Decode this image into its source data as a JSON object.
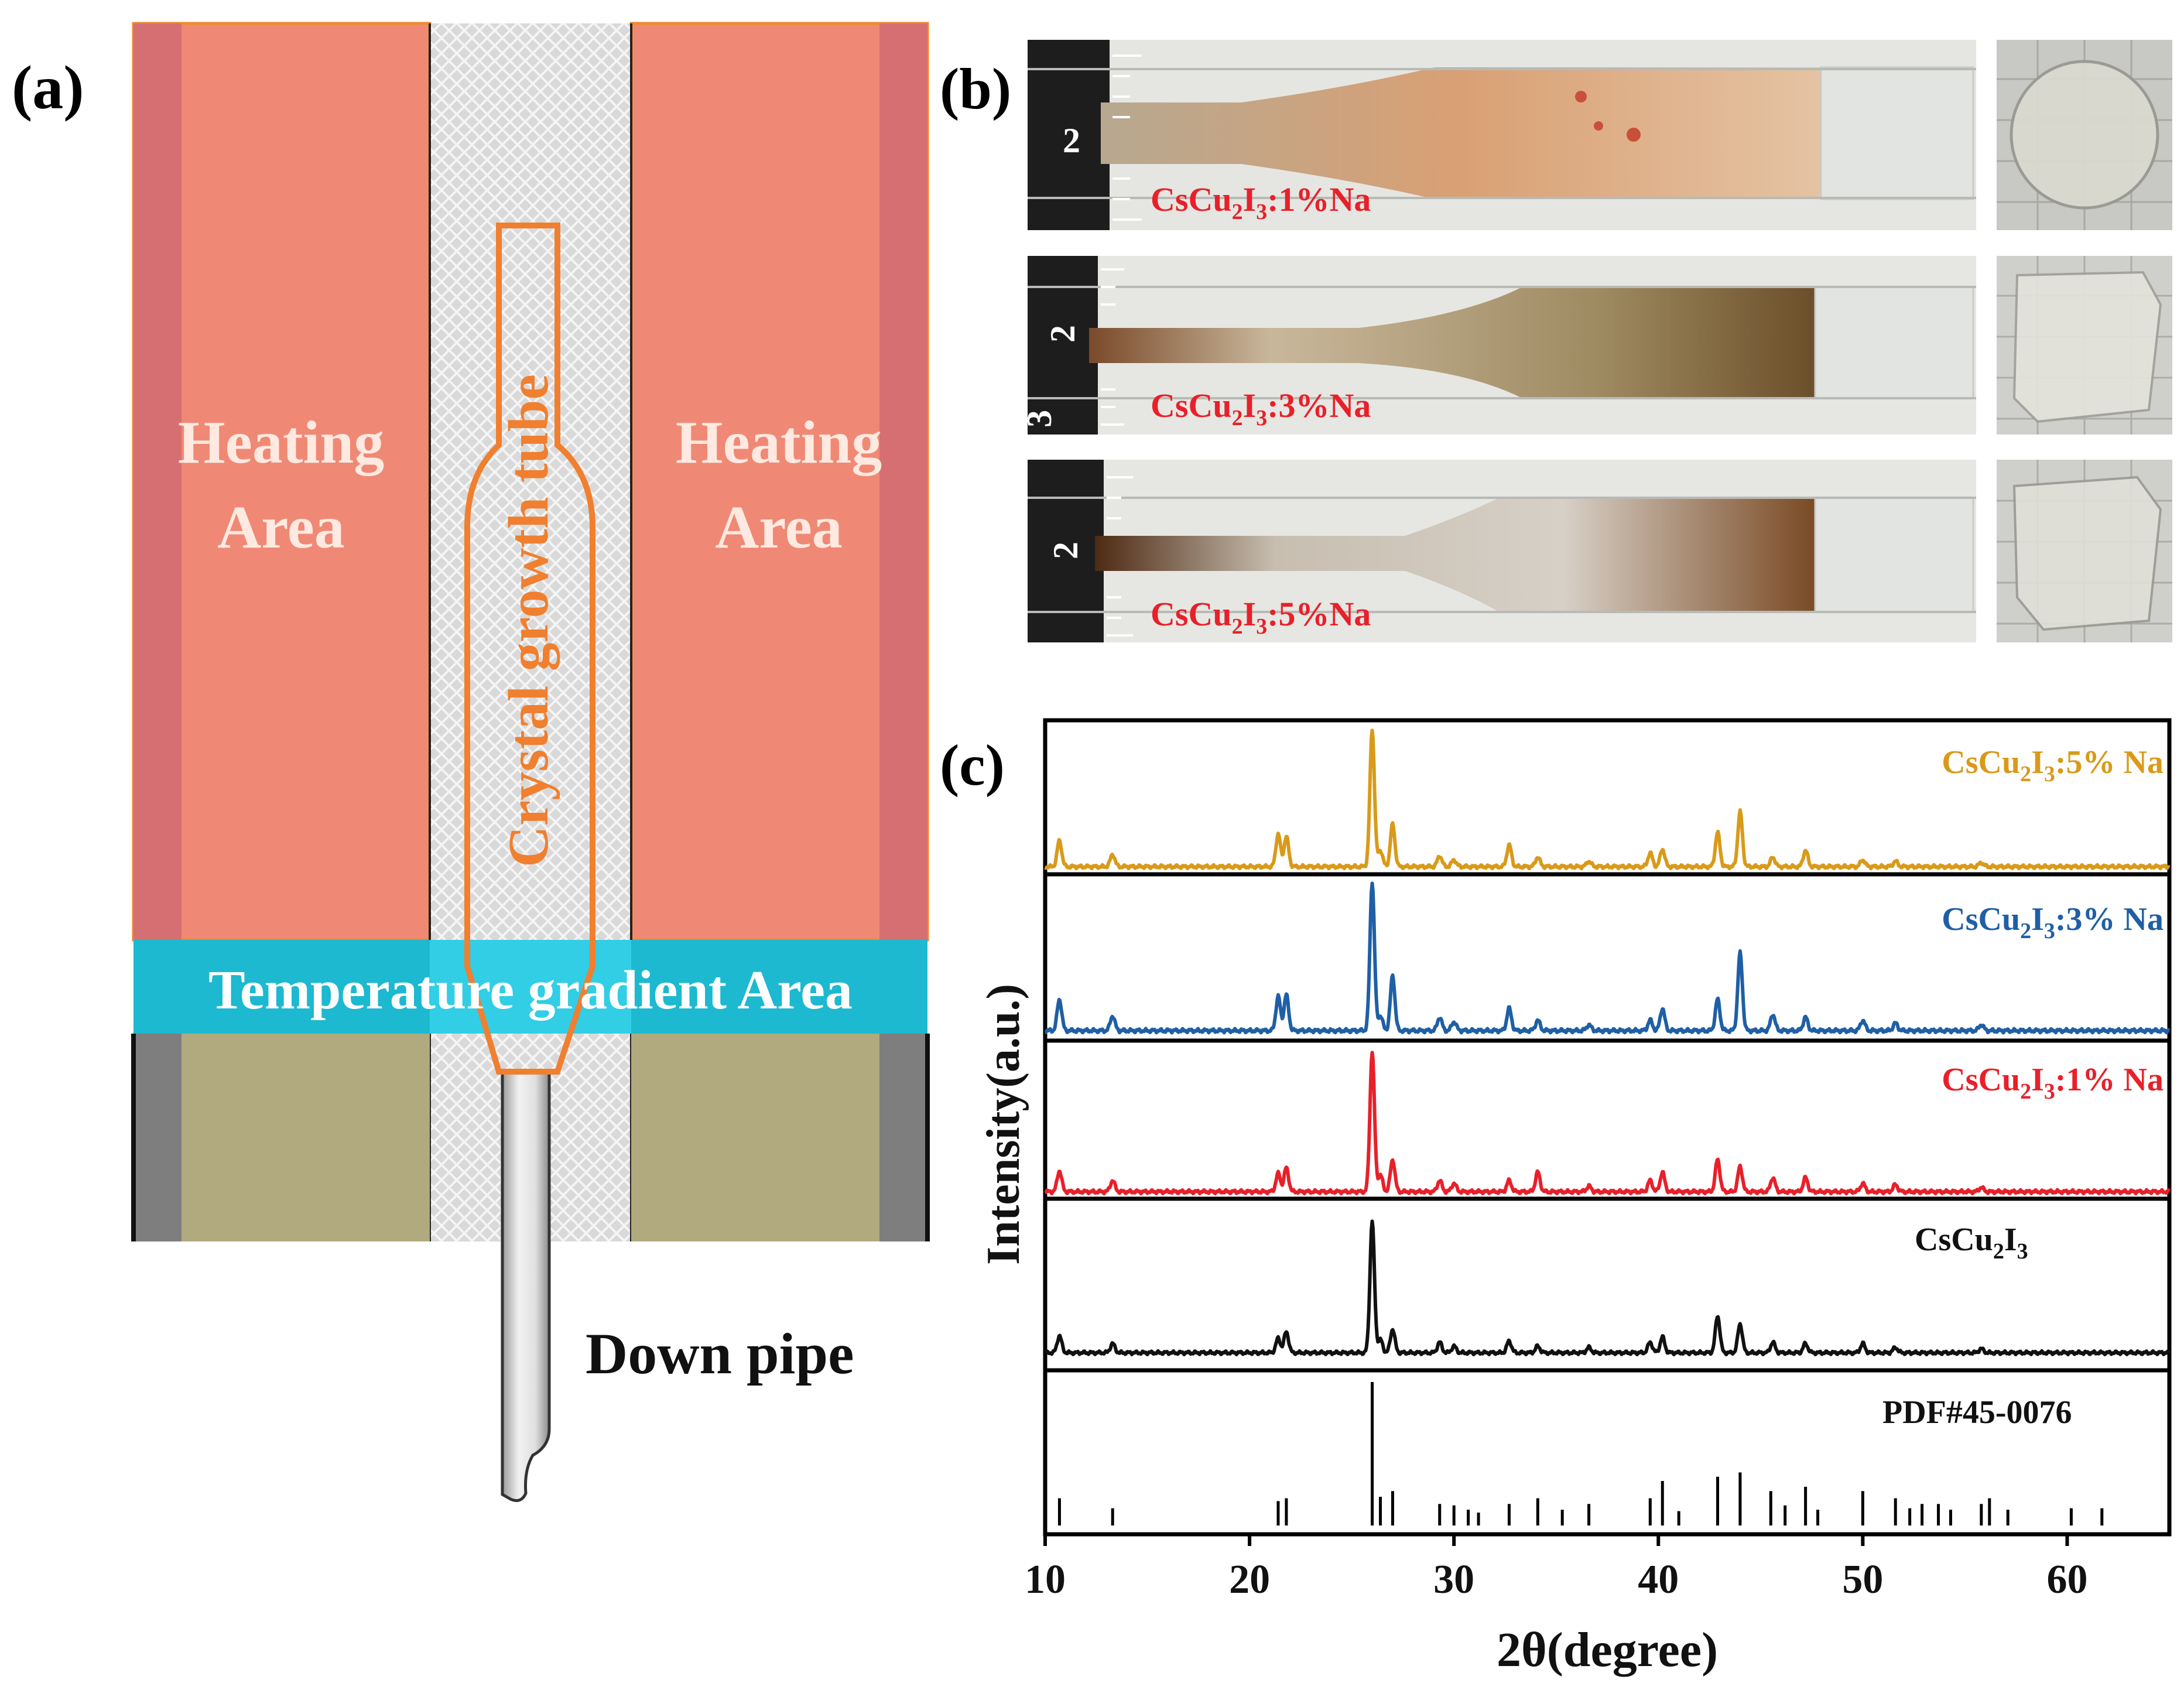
{
  "panel_a": {
    "label": "(a)",
    "heating_left_line1": "Heating",
    "heating_left_line2": "Area",
    "heating_right_line1": "Heating",
    "heating_right_line2": "Area",
    "tube_label": "Crystal growth tube",
    "gradient_label": "Temperature gradient Area",
    "pipe_label": "Down pipe",
    "colors": {
      "heating": "#ef8975",
      "heating_edge": "#d46f71",
      "gradient": "#19b8cf",
      "base": "#b2ab7f",
      "base_edge": "#7f7f7f",
      "tube": "#f07f30"
    }
  },
  "panel_b": {
    "label": "(b)",
    "samples": [
      {
        "base": "CsCu",
        "sub1": "2",
        "mid": "I",
        "sub2": "3",
        "suffix": ":1%Na",
        "ruler_digits": [
          "2"
        ]
      },
      {
        "base": "CsCu",
        "sub1": "2",
        "mid": "I",
        "sub2": "3",
        "suffix": ":3%Na",
        "ruler_digits": [
          "2",
          "3"
        ]
      },
      {
        "base": "CsCu",
        "sub1": "2",
        "mid": "I",
        "sub2": "3",
        "suffix": ":5%Na",
        "ruler_digits": [
          "2"
        ]
      }
    ],
    "label_color": "#e8202a"
  },
  "panel_c": {
    "label": "(c)",
    "xlabel": "2θ(degree)",
    "ylabel": "Intensity(a.u.)",
    "ticks": [
      "10",
      "20",
      "30",
      "40",
      "50",
      "60"
    ],
    "traces": [
      {
        "base": "CsCu",
        "sub1": "2",
        "mid": "I",
        "sub2": "3",
        "suffix": ":5% Na",
        "color": "#d99a1a"
      },
      {
        "base": "CsCu",
        "sub1": "2",
        "mid": "I",
        "sub2": "3",
        "suffix": ":3% Na",
        "color": "#1f5fa5"
      },
      {
        "base": "CsCu",
        "sub1": "2",
        "mid": "I",
        "sub2": "3",
        "suffix": ":1% Na",
        "color": "#e8202a"
      },
      {
        "base": "CsCu",
        "sub1": "2",
        "mid": "I",
        "sub2": "3",
        "suffix": "",
        "color": "#111111"
      }
    ],
    "reference_label": "PDF#45-0076"
  },
  "chart_data": {
    "type": "line",
    "xlabel": "2θ(degree)",
    "ylabel": "Intensity(a.u.)",
    "xlim": [
      10,
      65
    ],
    "x_ticks": [
      10,
      20,
      30,
      40,
      50,
      60
    ],
    "series": [
      {
        "name": "CsCu2I3:5% Na",
        "peaks": [
          [
            10.7,
            0.19
          ],
          [
            13.3,
            0.09
          ],
          [
            21.4,
            0.24
          ],
          [
            21.8,
            0.22
          ],
          [
            26.0,
            1.0
          ],
          [
            26.4,
            0.12
          ],
          [
            27.0,
            0.31
          ],
          [
            29.3,
            0.08
          ],
          [
            30.0,
            0.05
          ],
          [
            32.7,
            0.16
          ],
          [
            34.1,
            0.07
          ],
          [
            36.6,
            0.04
          ],
          [
            39.6,
            0.1
          ],
          [
            40.2,
            0.13
          ],
          [
            42.9,
            0.25
          ],
          [
            44.0,
            0.4
          ],
          [
            45.6,
            0.07
          ],
          [
            47.2,
            0.12
          ],
          [
            50.0,
            0.05
          ],
          [
            51.6,
            0.04
          ],
          [
            55.8,
            0.03
          ]
        ]
      },
      {
        "name": "CsCu2I3:3% Na",
        "peaks": [
          [
            10.7,
            0.21
          ],
          [
            13.3,
            0.1
          ],
          [
            21.4,
            0.23
          ],
          [
            21.8,
            0.24
          ],
          [
            26.0,
            1.0
          ],
          [
            26.4,
            0.1
          ],
          [
            27.0,
            0.37
          ],
          [
            29.3,
            0.09
          ],
          [
            30.0,
            0.06
          ],
          [
            32.7,
            0.15
          ],
          [
            34.1,
            0.07
          ],
          [
            36.6,
            0.04
          ],
          [
            39.6,
            0.07
          ],
          [
            40.2,
            0.15
          ],
          [
            42.9,
            0.21
          ],
          [
            44.0,
            0.52
          ],
          [
            45.6,
            0.11
          ],
          [
            47.2,
            0.09
          ],
          [
            50.0,
            0.07
          ],
          [
            51.6,
            0.05
          ],
          [
            55.8,
            0.04
          ]
        ]
      },
      {
        "name": "CsCu2I3:1% Na",
        "peaks": [
          [
            10.7,
            0.15
          ],
          [
            13.3,
            0.08
          ],
          [
            21.4,
            0.13
          ],
          [
            21.8,
            0.17
          ],
          [
            26.0,
            1.0
          ],
          [
            26.4,
            0.12
          ],
          [
            27.0,
            0.23
          ],
          [
            29.3,
            0.08
          ],
          [
            30.0,
            0.06
          ],
          [
            32.7,
            0.08
          ],
          [
            34.1,
            0.14
          ],
          [
            36.6,
            0.04
          ],
          [
            39.6,
            0.08
          ],
          [
            40.2,
            0.14
          ],
          [
            42.9,
            0.23
          ],
          [
            44.0,
            0.18
          ],
          [
            45.6,
            0.1
          ],
          [
            47.2,
            0.1
          ],
          [
            50.0,
            0.06
          ],
          [
            51.6,
            0.05
          ],
          [
            55.8,
            0.03
          ]
        ]
      },
      {
        "name": "CsCu2I3",
        "peaks": [
          [
            10.7,
            0.13
          ],
          [
            13.3,
            0.07
          ],
          [
            21.4,
            0.11
          ],
          [
            21.8,
            0.16
          ],
          [
            26.0,
            1.0
          ],
          [
            26.4,
            0.1
          ],
          [
            27.0,
            0.18
          ],
          [
            29.3,
            0.08
          ],
          [
            30.0,
            0.05
          ],
          [
            32.7,
            0.09
          ],
          [
            34.1,
            0.05
          ],
          [
            36.6,
            0.04
          ],
          [
            39.6,
            0.08
          ],
          [
            40.2,
            0.12
          ],
          [
            42.9,
            0.28
          ],
          [
            44.0,
            0.22
          ],
          [
            45.6,
            0.08
          ],
          [
            47.2,
            0.07
          ],
          [
            50.0,
            0.07
          ],
          [
            51.6,
            0.04
          ],
          [
            55.8,
            0.03
          ]
        ]
      },
      {
        "name": "PDF#45-0076",
        "sticks": [
          [
            10.7,
            0.19
          ],
          [
            13.3,
            0.12
          ],
          [
            21.4,
            0.17
          ],
          [
            21.8,
            0.19
          ],
          [
            26.0,
            1.0
          ],
          [
            26.4,
            0.2
          ],
          [
            27.0,
            0.24
          ],
          [
            29.3,
            0.15
          ],
          [
            30.0,
            0.14
          ],
          [
            30.7,
            0.11
          ],
          [
            31.2,
            0.09
          ],
          [
            32.7,
            0.15
          ],
          [
            34.1,
            0.19
          ],
          [
            35.3,
            0.11
          ],
          [
            36.6,
            0.15
          ],
          [
            39.6,
            0.19
          ],
          [
            40.2,
            0.31
          ],
          [
            41.0,
            0.1
          ],
          [
            42.9,
            0.34
          ],
          [
            44.0,
            0.37
          ],
          [
            45.5,
            0.24
          ],
          [
            46.2,
            0.14
          ],
          [
            47.2,
            0.27
          ],
          [
            47.8,
            0.11
          ],
          [
            50.0,
            0.24
          ],
          [
            51.6,
            0.19
          ],
          [
            52.3,
            0.12
          ],
          [
            52.9,
            0.15
          ],
          [
            53.7,
            0.15
          ],
          [
            54.3,
            0.11
          ],
          [
            55.8,
            0.15
          ],
          [
            56.2,
            0.19
          ],
          [
            57.1,
            0.11
          ],
          [
            60.2,
            0.12
          ],
          [
            61.7,
            0.12
          ]
        ]
      }
    ]
  }
}
